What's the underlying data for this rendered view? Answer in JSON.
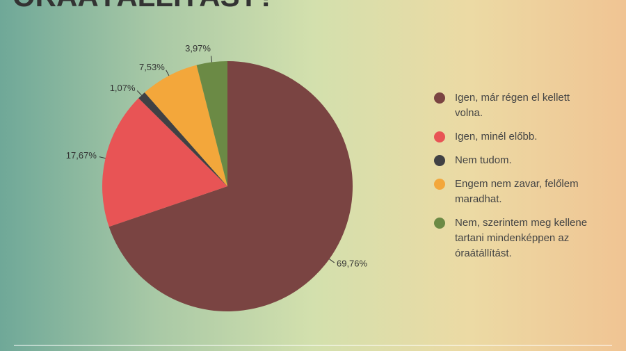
{
  "chart_data": {
    "type": "pie",
    "title": "ÓRAÁTÁLLÍTÁST?",
    "categories": [
      "Igen, már régen el kellett volna.",
      "Igen, minél előbb.",
      "Nem tudom.",
      "Engem nem zavar, felőlem maradhat.",
      "Nem, szerintem meg kellene tartani mindenképpen az óraátállítást."
    ],
    "values": [
      69.76,
      17.67,
      1.07,
      7.53,
      3.97
    ],
    "value_labels": [
      "69,76%",
      "17,67%",
      "1,07%",
      "7,53%",
      "3,97%"
    ],
    "colors": [
      "#7a4442",
      "#e85455",
      "#404144",
      "#f3a73b",
      "#6b8a45"
    ]
  }
}
